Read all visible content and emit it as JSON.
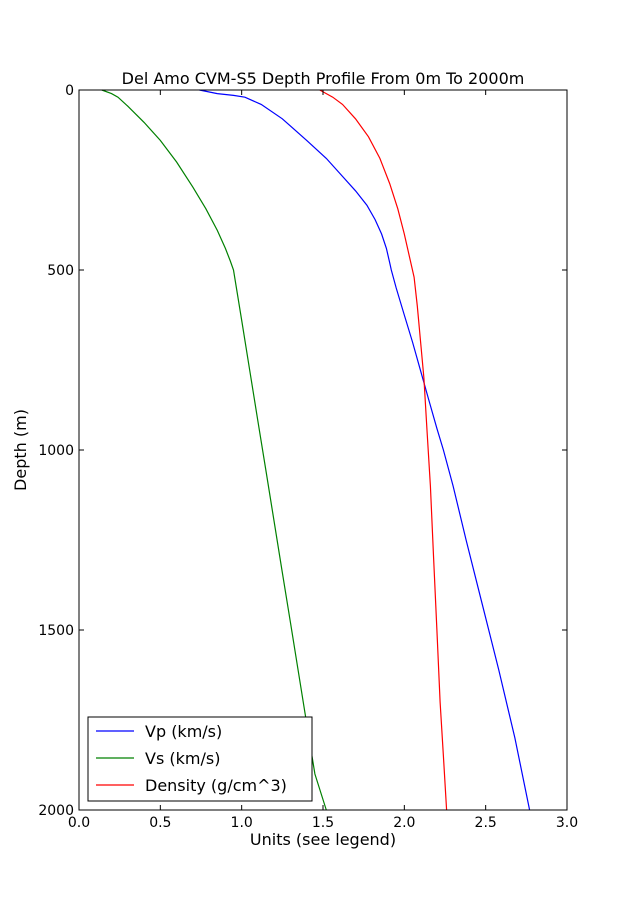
{
  "chart_data": {
    "type": "line",
    "title": "Del Amo CVM-S5 Depth Profile From 0m To 2000m",
    "xlabel": "Units (see legend)",
    "ylabel": "Depth (m)",
    "xlim": [
      0.0,
      3.0
    ],
    "ylim": [
      2000,
      0
    ],
    "y_inverted": true,
    "xticks": [
      "0.0",
      "0.5",
      "1.0",
      "1.5",
      "2.0",
      "2.5",
      "3.0"
    ],
    "yticks": [
      "0",
      "500",
      "1000",
      "1500",
      "2000"
    ],
    "grid": false,
    "legend_position": "bottom-left",
    "series": [
      {
        "name": "Vp (km/s)",
        "color": "#0000ff",
        "x": [
          0.74,
          0.85,
          0.95,
          1.02,
          1.12,
          1.25,
          1.4,
          1.52,
          1.62,
          1.7,
          1.77,
          1.82,
          1.86,
          1.89,
          1.91,
          1.92,
          1.95,
          2.0,
          2.05,
          2.1,
          2.15,
          2.2,
          2.24,
          2.3,
          2.38,
          2.48,
          2.58,
          2.68,
          2.77
        ],
        "y": [
          0,
          10,
          15,
          20,
          40,
          80,
          140,
          190,
          240,
          280,
          320,
          360,
          400,
          440,
          480,
          500,
          550,
          625,
          700,
          780,
          860,
          940,
          1000,
          1100,
          1250,
          1430,
          1610,
          1800,
          2000
        ]
      },
      {
        "name": "Vs (km/s)",
        "color": "#008000",
        "x": [
          0.14,
          0.2,
          0.24,
          0.3,
          0.4,
          0.5,
          0.6,
          0.7,
          0.78,
          0.85,
          0.9,
          0.93,
          0.95,
          1.0,
          1.05,
          1.1,
          1.15,
          1.2,
          1.25,
          1.3,
          1.35,
          1.4,
          1.45,
          1.52
        ],
        "y": [
          0,
          10,
          20,
          45,
          90,
          140,
          200,
          270,
          330,
          390,
          440,
          475,
          500,
          640,
          780,
          920,
          1060,
          1200,
          1340,
          1480,
          1620,
          1760,
          1900,
          2000
        ]
      },
      {
        "name": "Density (g/cm^3)",
        "color": "#ff0000",
        "x": [
          1.48,
          1.52,
          1.56,
          1.62,
          1.7,
          1.78,
          1.85,
          1.91,
          1.96,
          2.0,
          2.03,
          2.06,
          2.08,
          2.1,
          2.12,
          2.14,
          2.16,
          2.18,
          2.2,
          2.22,
          2.24,
          2.26
        ],
        "y": [
          0,
          10,
          20,
          40,
          80,
          130,
          190,
          260,
          330,
          400,
          460,
          520,
          600,
          700,
          800,
          950,
          1100,
          1300,
          1500,
          1700,
          1850,
          2000
        ]
      }
    ]
  }
}
